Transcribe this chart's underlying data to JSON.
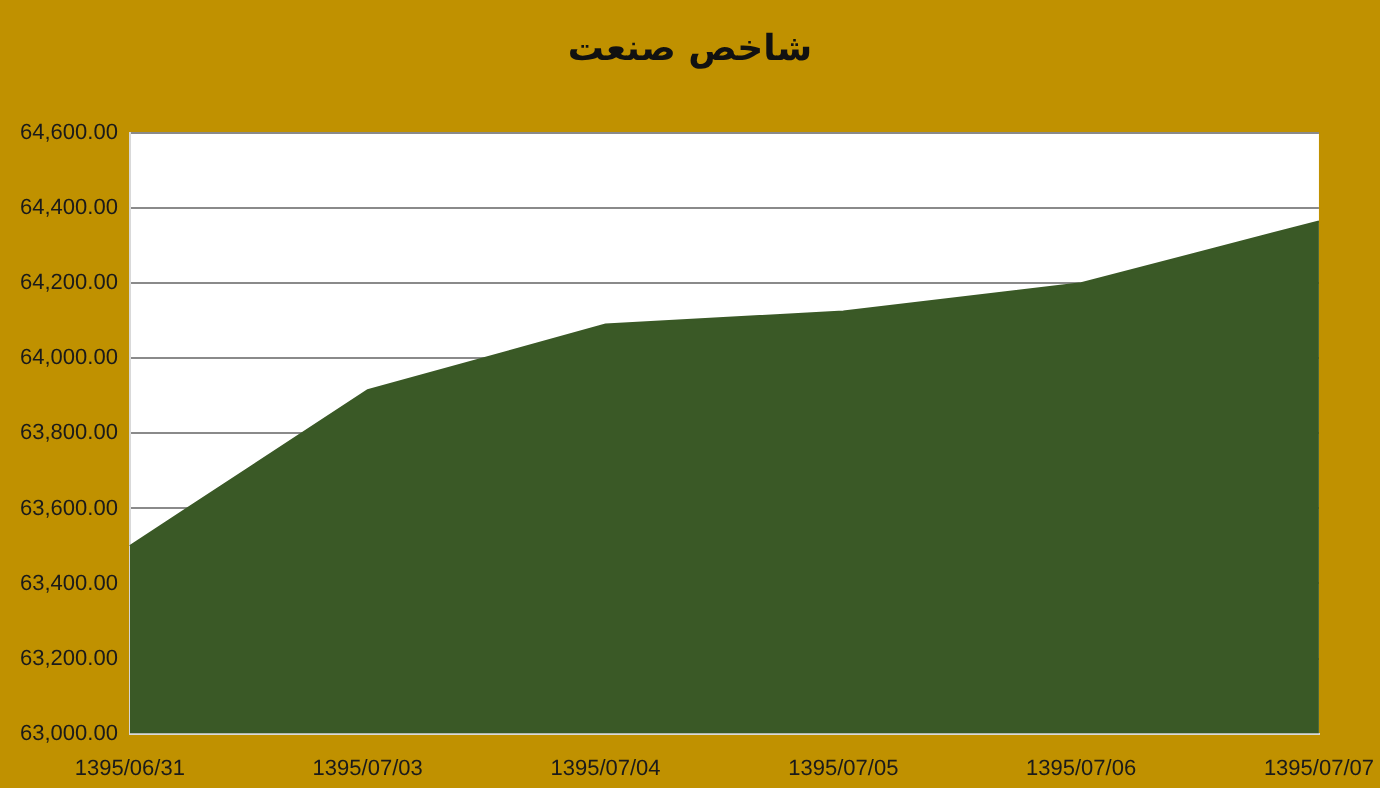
{
  "chart_data": {
    "type": "area",
    "title": "شاخص صنعت",
    "categories": [
      "1395/06/31",
      "1395/07/03",
      "1395/07/04",
      "1395/07/05",
      "1395/07/06",
      "1395/07/07"
    ],
    "values": [
      63500,
      63915,
      64090,
      64125,
      64200,
      64365
    ],
    "color": "#3a5926",
    "ylim": [
      63000,
      64600
    ],
    "yticks": [
      {
        "value": 63000,
        "label": "63,000.00"
      },
      {
        "value": 63200,
        "label": "63,200.00"
      },
      {
        "value": 63400,
        "label": "63,400.00"
      },
      {
        "value": 63600,
        "label": "63,600.00"
      },
      {
        "value": 63800,
        "label": "63,800.00"
      },
      {
        "value": 64000,
        "label": "64,000.00"
      },
      {
        "value": 64200,
        "label": "64,200.00"
      },
      {
        "value": 64400,
        "label": "64,400.00"
      },
      {
        "value": 64600,
        "label": "64,600.00"
      }
    ],
    "grid": "y"
  }
}
